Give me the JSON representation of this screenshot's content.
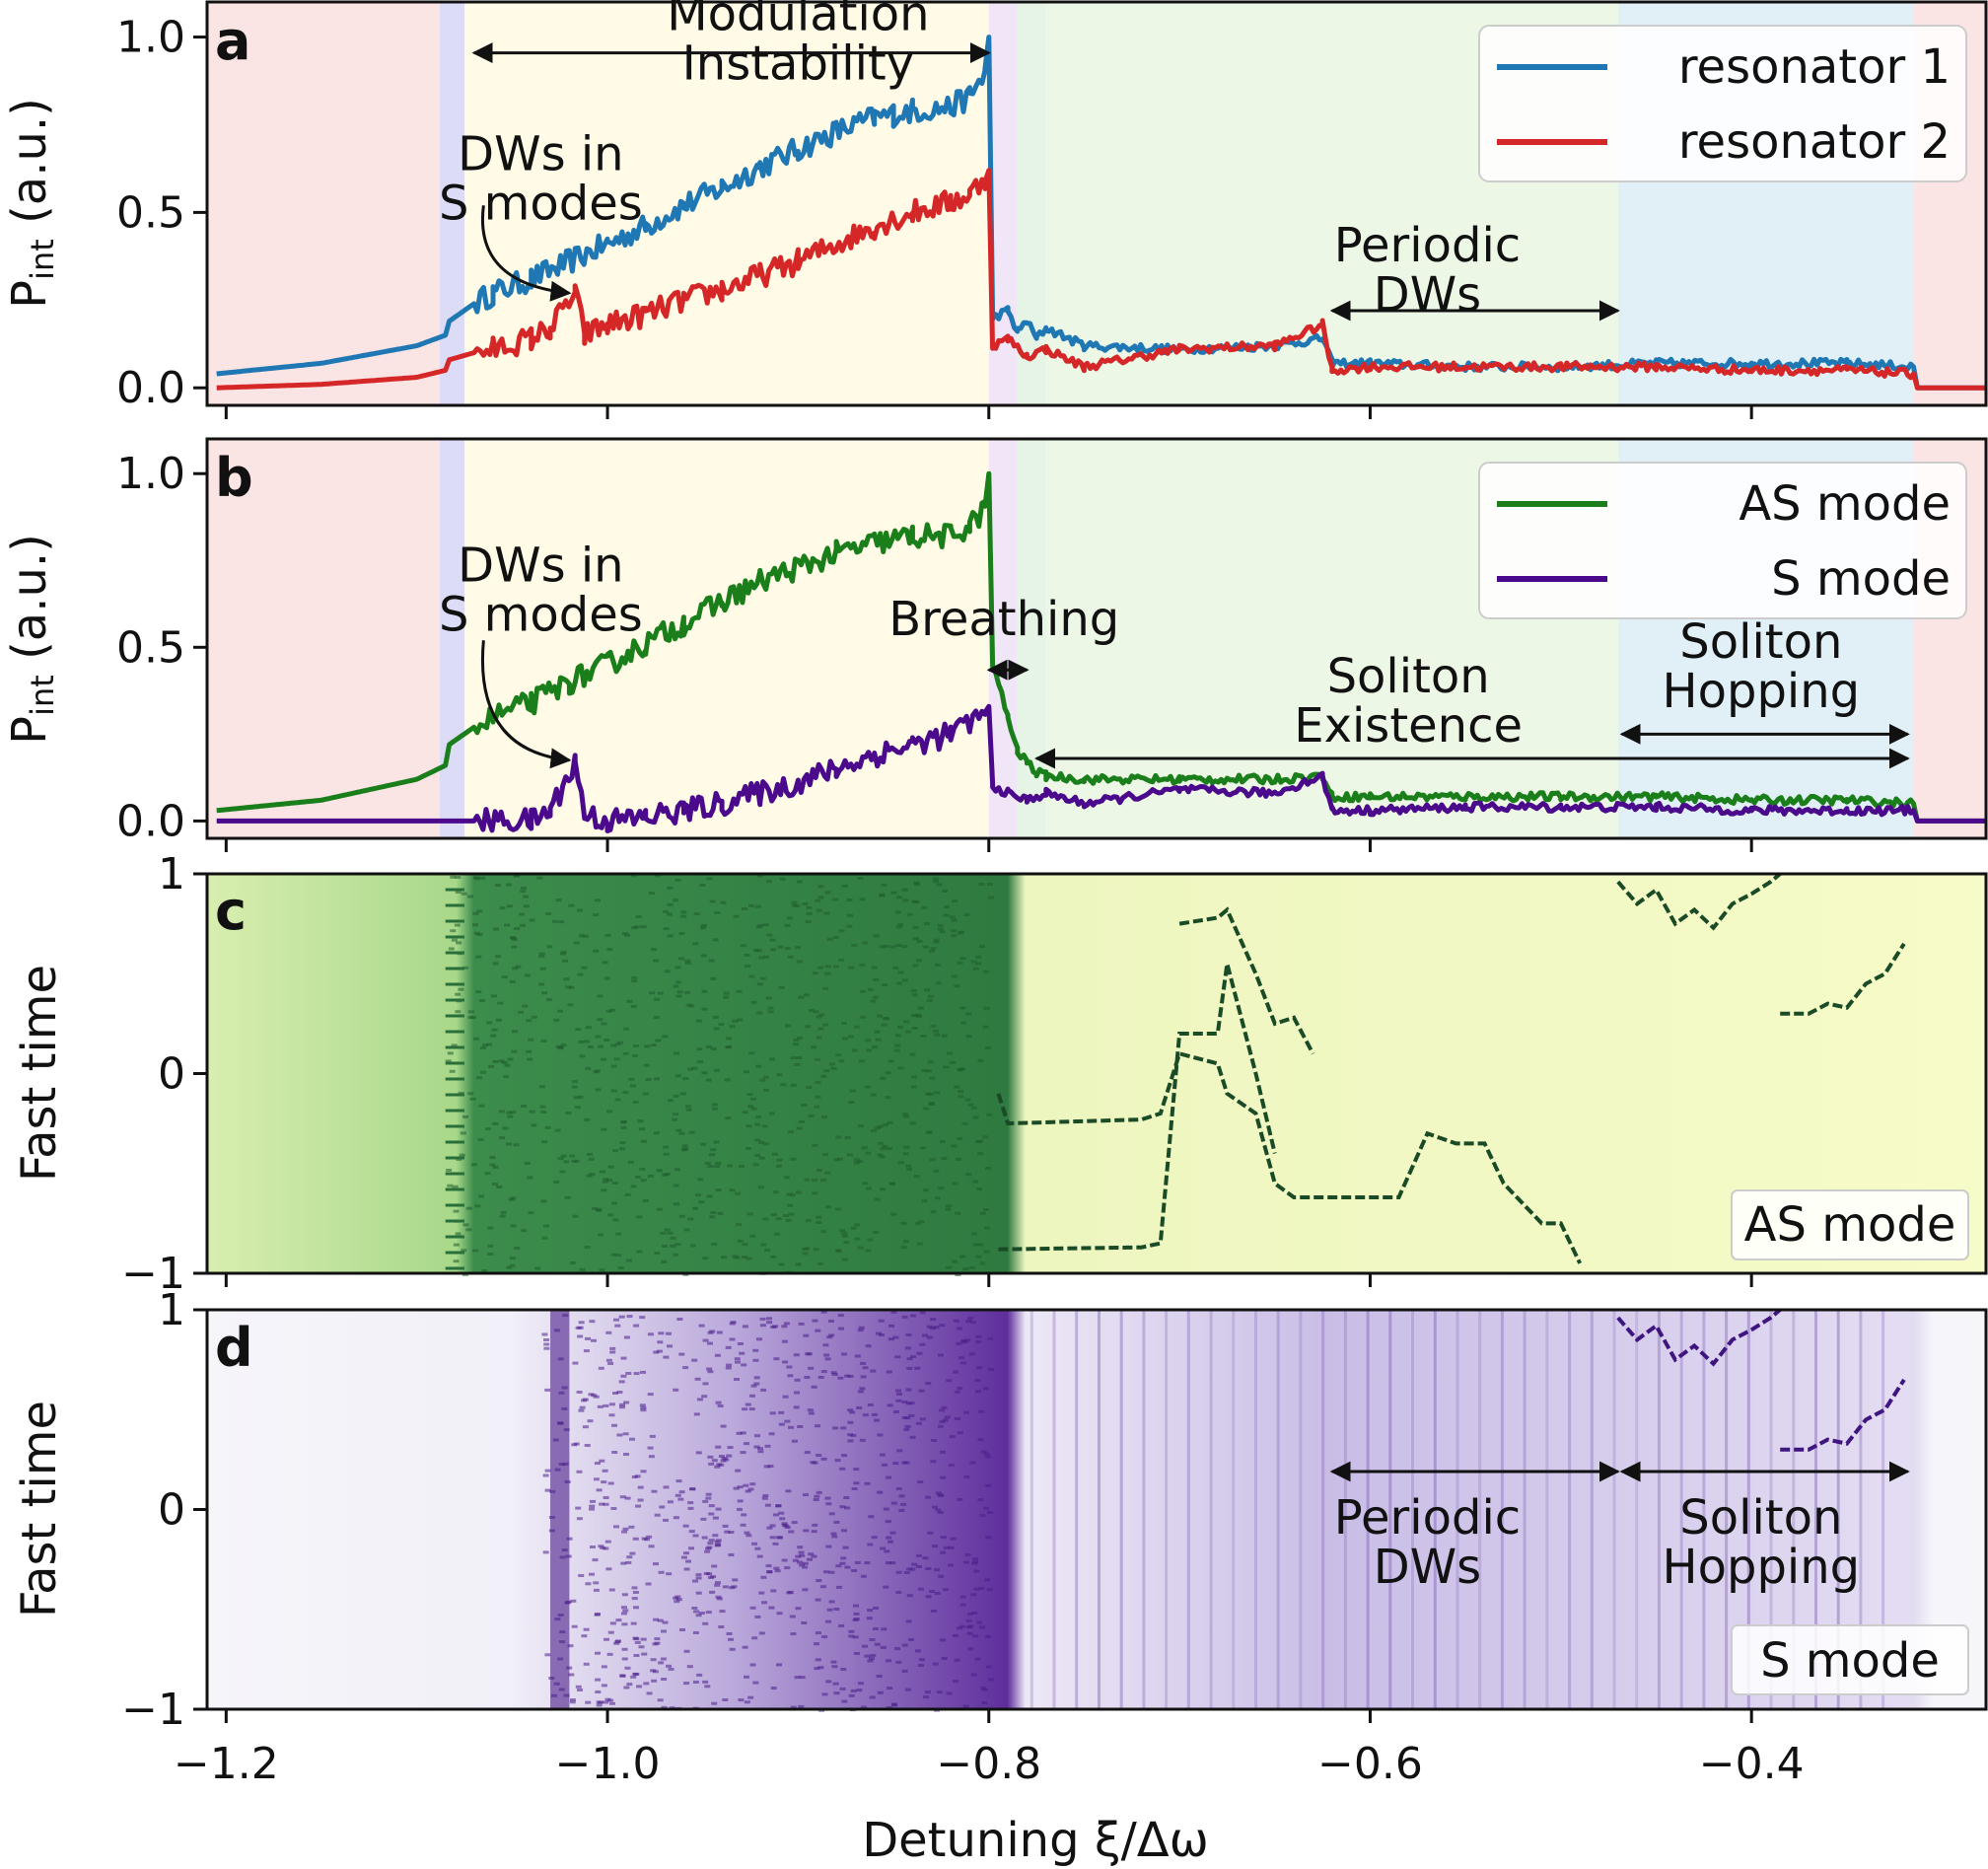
{
  "chart_data": [
    {
      "type": "line",
      "panel": "a",
      "ylabel": "P_int (a.u.)",
      "xlim": [
        -1.21,
        -0.277
      ],
      "ylim": [
        -0.05,
        1.1
      ],
      "y_ticks": [
        "0.0",
        "0.5",
        "1.0"
      ],
      "grid": false,
      "legend_position": "top-right",
      "series": [
        {
          "name": "resonator 1",
          "color": "#1f77b4",
          "x": [
            -1.205,
            -1.15,
            -1.1,
            -1.085,
            -1.083,
            -1.07,
            -1.06,
            -1.04,
            -1.02,
            -1.0,
            -0.98,
            -0.96,
            -0.94,
            -0.92,
            -0.9,
            -0.88,
            -0.86,
            -0.85,
            -0.84,
            -0.82,
            -0.81,
            -0.802,
            -0.8,
            -0.798,
            -0.79,
            -0.785,
            -0.78,
            -0.775,
            -0.77,
            -0.75,
            -0.7,
            -0.65,
            -0.625,
            -0.62,
            -0.6,
            -0.55,
            -0.5,
            -0.45,
            -0.4,
            -0.35,
            -0.315,
            -0.313,
            -0.277
          ],
          "y": [
            0.04,
            0.07,
            0.12,
            0.15,
            0.19,
            0.24,
            0.27,
            0.31,
            0.36,
            0.41,
            0.46,
            0.52,
            0.57,
            0.63,
            0.68,
            0.73,
            0.77,
            0.78,
            0.79,
            0.8,
            0.83,
            0.9,
            1.0,
            0.2,
            0.22,
            0.16,
            0.19,
            0.14,
            0.17,
            0.12,
            0.11,
            0.12,
            0.14,
            0.07,
            0.07,
            0.06,
            0.06,
            0.07,
            0.07,
            0.07,
            0.06,
            0.0,
            0.0
          ]
        },
        {
          "name": "resonator 2",
          "color": "#d62728",
          "x": [
            -1.205,
            -1.15,
            -1.1,
            -1.085,
            -1.083,
            -1.07,
            -1.06,
            -1.04,
            -1.03,
            -1.017,
            -1.012,
            -1.0,
            -0.98,
            -0.96,
            -0.94,
            -0.92,
            -0.9,
            -0.88,
            -0.86,
            -0.84,
            -0.82,
            -0.81,
            -0.802,
            -0.8,
            -0.798,
            -0.79,
            -0.78,
            -0.77,
            -0.75,
            -0.7,
            -0.65,
            -0.625,
            -0.62,
            -0.6,
            -0.55,
            -0.5,
            -0.45,
            -0.4,
            -0.35,
            -0.315,
            -0.313,
            -0.277
          ],
          "y": [
            0.0,
            0.01,
            0.03,
            0.05,
            0.08,
            0.1,
            0.11,
            0.14,
            0.17,
            0.27,
            0.15,
            0.18,
            0.21,
            0.25,
            0.28,
            0.32,
            0.36,
            0.41,
            0.46,
            0.5,
            0.53,
            0.55,
            0.6,
            0.62,
            0.12,
            0.14,
            0.09,
            0.11,
            0.06,
            0.11,
            0.12,
            0.18,
            0.05,
            0.06,
            0.06,
            0.06,
            0.06,
            0.05,
            0.05,
            0.04,
            0.0,
            0.0
          ]
        }
      ],
      "annotations": [
        {
          "text": [
            "Modulation",
            "Instability"
          ],
          "x": -0.9,
          "y": 1.02
        },
        {
          "text": [
            "DWs in",
            "S modes"
          ],
          "x": -1.035,
          "y": 0.62
        },
        {
          "text": [
            "Periodic",
            "DWs"
          ],
          "x": -0.57,
          "y": 0.36
        }
      ],
      "arrows": [
        {
          "kind": "double",
          "x1": -1.07,
          "y1": 0.955,
          "x2": -0.8,
          "y2": 0.955
        },
        {
          "kind": "double",
          "x1": -0.62,
          "y1": 0.22,
          "x2": -0.47,
          "y2": 0.22
        },
        {
          "kind": "curved",
          "x1": -1.065,
          "y1": 0.52,
          "x2": -1.02,
          "y2": 0.27
        }
      ]
    },
    {
      "type": "line",
      "panel": "b",
      "ylabel": "P_int (a.u.)",
      "xlim": [
        -1.21,
        -0.277
      ],
      "ylim": [
        -0.05,
        1.1
      ],
      "y_ticks": [
        "0.0",
        "0.5",
        "1.0"
      ],
      "grid": false,
      "legend_position": "top-right",
      "series": [
        {
          "name": "AS mode",
          "color": "#1a7f1a",
          "x": [
            -1.205,
            -1.15,
            -1.1,
            -1.085,
            -1.083,
            -1.07,
            -1.06,
            -1.04,
            -1.02,
            -1.0,
            -0.98,
            -0.96,
            -0.94,
            -0.92,
            -0.9,
            -0.88,
            -0.86,
            -0.84,
            -0.82,
            -0.81,
            -0.802,
            -0.8,
            -0.798,
            -0.79,
            -0.785,
            -0.78,
            -0.775,
            -0.77,
            -0.75,
            -0.7,
            -0.65,
            -0.625,
            -0.62,
            -0.6,
            -0.55,
            -0.5,
            -0.45,
            -0.4,
            -0.35,
            -0.315,
            -0.313,
            -0.277
          ],
          "y": [
            0.03,
            0.06,
            0.12,
            0.16,
            0.22,
            0.27,
            0.3,
            0.34,
            0.4,
            0.45,
            0.51,
            0.57,
            0.63,
            0.69,
            0.73,
            0.77,
            0.8,
            0.82,
            0.82,
            0.85,
            0.9,
            1.0,
            0.45,
            0.3,
            0.2,
            0.17,
            0.14,
            0.13,
            0.12,
            0.12,
            0.12,
            0.13,
            0.07,
            0.07,
            0.07,
            0.07,
            0.07,
            0.06,
            0.06,
            0.05,
            0.0,
            0.0
          ]
        },
        {
          "name": "S mode",
          "color": "#4b0a8c",
          "x": [
            -1.205,
            -1.1,
            -1.07,
            -1.04,
            -1.03,
            -1.017,
            -1.012,
            -1.0,
            -0.98,
            -0.96,
            -0.94,
            -0.92,
            -0.9,
            -0.88,
            -0.86,
            -0.84,
            -0.82,
            -0.81,
            -0.802,
            -0.8,
            -0.798,
            -0.79,
            -0.78,
            -0.77,
            -0.75,
            -0.7,
            -0.65,
            -0.625,
            -0.62,
            -0.6,
            -0.55,
            -0.5,
            -0.45,
            -0.4,
            -0.35,
            -0.315,
            -0.313,
            -0.277
          ],
          "y": [
            0.0,
            0.0,
            0.0,
            0.0,
            0.03,
            0.17,
            0.02,
            0.0,
            0.01,
            0.03,
            0.05,
            0.08,
            0.11,
            0.15,
            0.19,
            0.22,
            0.25,
            0.28,
            0.31,
            0.33,
            0.1,
            0.08,
            0.06,
            0.08,
            0.05,
            0.09,
            0.08,
            0.13,
            0.03,
            0.03,
            0.04,
            0.04,
            0.04,
            0.03,
            0.03,
            0.03,
            0.0,
            0.0
          ]
        }
      ],
      "annotations": [
        {
          "text": [
            "DWs in",
            "S modes"
          ],
          "x": -1.035,
          "y": 0.69
        },
        {
          "text": [
            "Breathing"
          ],
          "x": -0.792,
          "y": 0.535
        },
        {
          "text": [
            "Soliton",
            "Existence"
          ],
          "x": -0.58,
          "y": 0.37
        },
        {
          "text": [
            "Soliton",
            "Hopping"
          ],
          "x": -0.395,
          "y": 0.47
        }
      ],
      "arrows": [
        {
          "kind": "double",
          "x1": -0.8,
          "y1": 0.435,
          "x2": -0.78,
          "y2": 0.435
        },
        {
          "kind": "double",
          "x1": -0.775,
          "y1": 0.18,
          "x2": -0.318,
          "y2": 0.18
        },
        {
          "kind": "double",
          "x1": -0.468,
          "y1": 0.25,
          "x2": -0.318,
          "y2": 0.25
        },
        {
          "kind": "curved",
          "x1": -1.065,
          "y1": 0.52,
          "x2": -1.02,
          "y2": 0.175
        }
      ]
    },
    {
      "type": "heatmap",
      "panel": "c",
      "ylabel": "Fast time",
      "xlim": [
        -1.21,
        -0.277
      ],
      "ylim": [
        -1,
        1
      ],
      "y_ticks": [
        "−1",
        "0",
        "1"
      ],
      "colormap": "green",
      "tag": "AS mode",
      "traces": [
        {
          "x": [
            -0.795,
            -0.79,
            -0.72,
            -0.71,
            -0.7,
            -0.68,
            -0.675,
            -0.66,
            -0.65,
            -0.64,
            -0.63,
            -0.6,
            -0.585,
            -0.57,
            -0.555,
            -0.54,
            -0.53,
            -0.51,
            -0.5,
            -0.49
          ],
          "y": [
            -0.1,
            -0.25,
            -0.23,
            -0.2,
            0.1,
            0.05,
            -0.1,
            -0.2,
            -0.55,
            -0.62,
            -0.62,
            -0.62,
            -0.62,
            -0.3,
            -0.35,
            -0.35,
            -0.55,
            -0.75,
            -0.75,
            -0.95
          ]
        },
        {
          "x": [
            -0.795,
            -0.72,
            -0.71,
            -0.7,
            -0.68,
            -0.675,
            -0.66,
            -0.65
          ],
          "y": [
            -0.88,
            -0.87,
            -0.85,
            0.2,
            0.2,
            0.55,
            0.0,
            -0.4
          ]
        },
        {
          "x": [
            -0.7,
            -0.68,
            -0.675,
            -0.66,
            -0.65,
            -0.64,
            -0.63
          ],
          "y": [
            0.75,
            0.78,
            0.82,
            0.5,
            0.25,
            0.28,
            0.1
          ]
        },
        {
          "x": [
            -0.47,
            -0.46,
            -0.45,
            -0.44,
            -0.43,
            -0.42,
            -0.41,
            -0.4,
            -0.39,
            -0.385
          ],
          "y": [
            0.96,
            0.85,
            0.92,
            0.75,
            0.82,
            0.73,
            0.85,
            0.9,
            0.96,
            1.0
          ]
        },
        {
          "x": [
            -0.385,
            -0.37,
            -0.36,
            -0.35,
            -0.34,
            -0.33,
            -0.32
          ],
          "y": [
            0.3,
            0.3,
            0.35,
            0.33,
            0.45,
            0.5,
            0.65
          ]
        }
      ]
    },
    {
      "type": "heatmap",
      "panel": "d",
      "ylabel": "Fast time",
      "xlabel": "Detuning ξ/Δω",
      "xlim": [
        -1.21,
        -0.277
      ],
      "ylim": [
        -1,
        1
      ],
      "y_ticks": [
        "−1",
        "0",
        "1"
      ],
      "x_ticks": [
        "−1.2",
        "−1.0",
        "−0.8",
        "−0.6",
        "−0.4"
      ],
      "colormap": "purple",
      "tag": "S mode",
      "traces": [
        {
          "x": [
            -0.47,
            -0.46,
            -0.45,
            -0.44,
            -0.43,
            -0.42,
            -0.41,
            -0.4,
            -0.39,
            -0.385
          ],
          "y": [
            0.96,
            0.85,
            0.92,
            0.75,
            0.82,
            0.73,
            0.85,
            0.9,
            0.96,
            1.0
          ]
        },
        {
          "x": [
            -0.385,
            -0.37,
            -0.36,
            -0.35,
            -0.34,
            -0.33,
            -0.32
          ],
          "y": [
            0.3,
            0.3,
            0.35,
            0.33,
            0.45,
            0.5,
            0.65
          ]
        }
      ],
      "annotations": [
        {
          "text": [
            "Periodic",
            "DWs"
          ],
          "x": -0.57,
          "y": -0.12
        },
        {
          "text": [
            "Soliton",
            "Hopping"
          ],
          "x": -0.395,
          "y": -0.12
        }
      ],
      "arrows": [
        {
          "kind": "double",
          "x1": -0.62,
          "y1": 0.19,
          "x2": -0.47,
          "y2": 0.19
        },
        {
          "kind": "double",
          "x1": -0.468,
          "y1": 0.19,
          "x2": -0.318,
          "y2": 0.19
        }
      ]
    }
  ],
  "bands": [
    {
      "x0": -1.21,
      "x1": -1.088,
      "color": "#fbe4e4"
    },
    {
      "x0": -1.088,
      "x1": -1.075,
      "color": "#dcdcf6"
    },
    {
      "x0": -1.075,
      "x1": -0.8,
      "color": "#fffbe6"
    },
    {
      "x0": -0.8,
      "x1": -0.785,
      "color": "#f0e6f8"
    },
    {
      "x0": -0.785,
      "x1": -0.77,
      "color": "#e6f4e6"
    },
    {
      "x0": -0.77,
      "x1": -0.47,
      "color": "#edf7e6"
    },
    {
      "x0": -0.47,
      "x1": -0.315,
      "color": "#e0f0f6"
    },
    {
      "x0": -0.315,
      "x1": -0.277,
      "color": "#fbe4e4"
    }
  ]
}
